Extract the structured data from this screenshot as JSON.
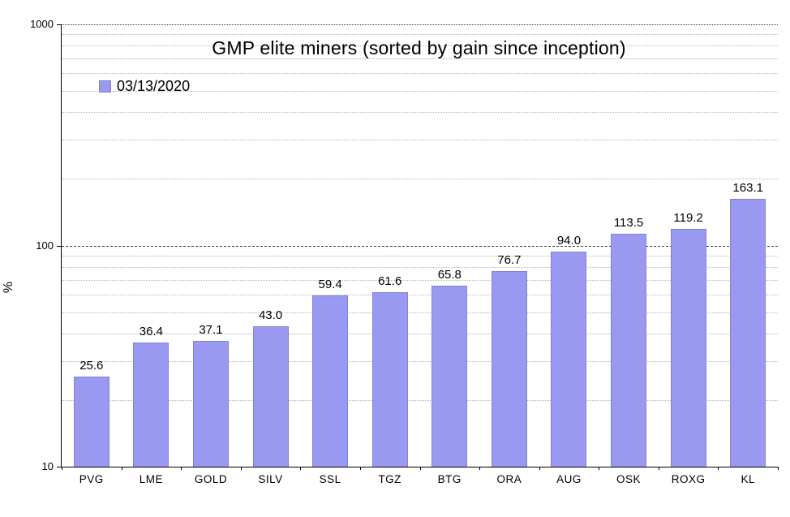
{
  "chart_data": {
    "type": "bar",
    "title": "GMP elite miners (sorted by gain since inception)",
    "legend_label": "03/13/2020",
    "ylabel": "%",
    "yscale": "log",
    "ylim": [
      10,
      1000
    ],
    "yticks": [
      10,
      100,
      1000
    ],
    "ytick_labels": [
      "10",
      "100",
      "1000"
    ],
    "categories": [
      "PVG",
      "LME",
      "GOLD",
      "SILV",
      "SSL",
      "TGZ",
      "BTG",
      "ORA",
      "AUG",
      "OSK",
      "ROXG",
      "KL"
    ],
    "values": [
      25.6,
      36.4,
      37.1,
      43.0,
      59.4,
      61.6,
      65.8,
      76.7,
      94.0,
      113.5,
      119.2,
      163.1
    ],
    "value_labels": [
      "25.6",
      "36.4",
      "37.1",
      "43.0",
      "59.4",
      "61.6",
      "65.8",
      "76.7",
      "94.0",
      "113.5",
      "119.2",
      "163.1"
    ],
    "bar_color": "#9a99f2",
    "bar_border_color": "#8282da",
    "gridline_minor_values": [
      20,
      30,
      40,
      50,
      60,
      70,
      80,
      90,
      200,
      300,
      400,
      500,
      600,
      700,
      800,
      900
    ],
    "gridline_major_value": 100,
    "legend_position": "top-left",
    "grid": "on"
  }
}
